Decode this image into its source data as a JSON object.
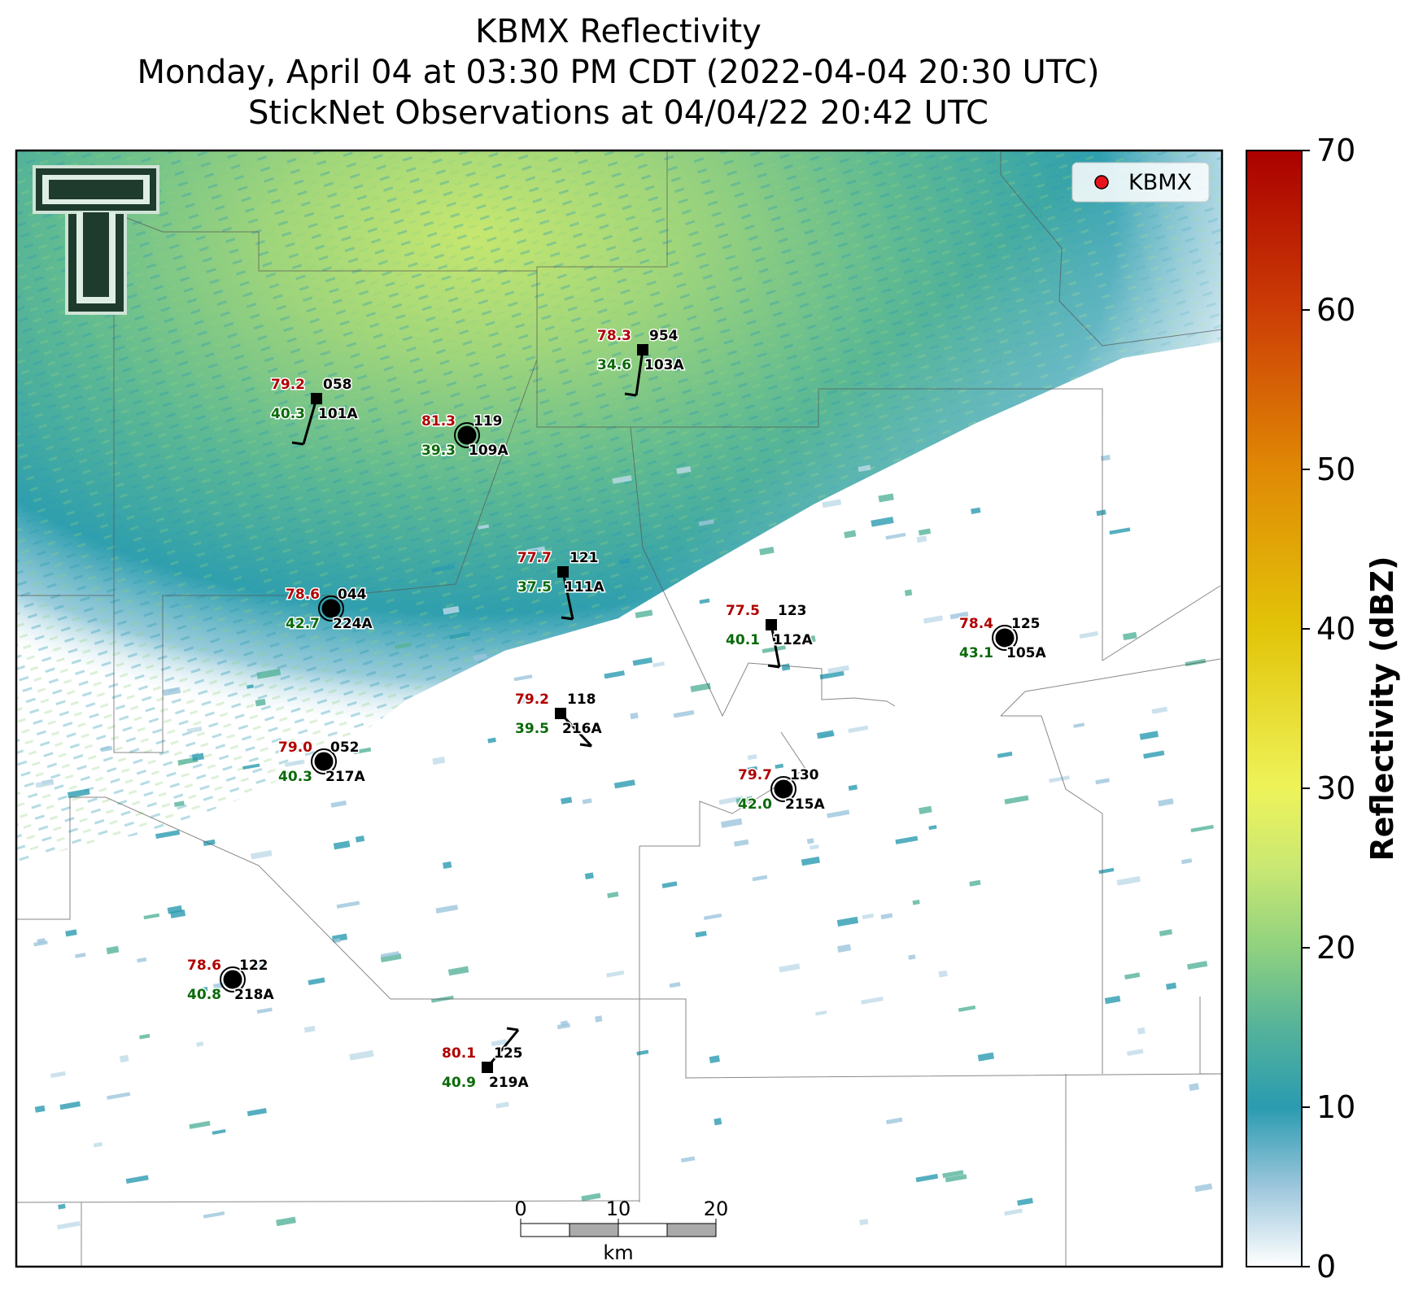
{
  "title": {
    "line1": "KBMX Reflectivity",
    "line2": "Monday, April 04 at 03:30 PM CDT (2022-04-04 20:30 UTC)",
    "line3": "StickNet Observations at 04/04/22 20:42 UTC"
  },
  "legend": {
    "label": "KBMX",
    "marker_color": "#e8141b"
  },
  "colorbar": {
    "label": "Reflectivity (dBZ)",
    "ticks": [
      "0",
      "10",
      "20",
      "30",
      "40",
      "50",
      "60",
      "70"
    ],
    "stops": [
      {
        "value": 0,
        "color": "#ffffff"
      },
      {
        "value": 5,
        "color": "#9cc6dc"
      },
      {
        "value": 10,
        "color": "#2a9bb0"
      },
      {
        "value": 15,
        "color": "#55b39a"
      },
      {
        "value": 20,
        "color": "#8fd17f"
      },
      {
        "value": 25,
        "color": "#c9e873"
      },
      {
        "value": 30,
        "color": "#eef35a"
      },
      {
        "value": 40,
        "color": "#e2c409"
      },
      {
        "value": 50,
        "color": "#e08905"
      },
      {
        "value": 60,
        "color": "#cc3d06"
      },
      {
        "value": 70,
        "color": "#aa0000"
      }
    ]
  },
  "scale_bar": {
    "labels": [
      "0",
      "10",
      "20"
    ],
    "unit": "km"
  },
  "logo": {
    "icon": "texas-tech-double-t-logo"
  },
  "stations": [
    {
      "temp": "78.3",
      "dew": "34.6",
      "pres": "954",
      "id": "103A",
      "type": "square"
    },
    {
      "temp": "79.2",
      "dew": "40.3",
      "pres": "058",
      "id": "101A",
      "type": "square"
    },
    {
      "temp": "81.3",
      "dew": "39.3",
      "pres": "119",
      "id": "109A",
      "type": "circle"
    },
    {
      "temp": "77.7",
      "dew": "37.5",
      "pres": "121",
      "id": "111A",
      "type": "square"
    },
    {
      "temp": "78.6",
      "dew": "42.7",
      "pres": "044",
      "id": "224A",
      "type": "circle"
    },
    {
      "temp": "77.5",
      "dew": "40.1",
      "pres": "123",
      "id": "112A",
      "type": "square"
    },
    {
      "temp": "78.4",
      "dew": "43.1",
      "pres": "125",
      "id": "105A",
      "type": "circle"
    },
    {
      "temp": "79.2",
      "dew": "39.5",
      "pres": "118",
      "id": "216A",
      "type": "square"
    },
    {
      "temp": "79.0",
      "dew": "40.3",
      "pres": "052",
      "id": "217A",
      "type": "circle"
    },
    {
      "temp": "79.7",
      "dew": "42.0",
      "pres": "130",
      "id": "215A",
      "type": "circle"
    },
    {
      "temp": "78.6",
      "dew": "40.8",
      "pres": "122",
      "id": "218A",
      "type": "circle"
    },
    {
      "temp": "80.1",
      "dew": "40.9",
      "pres": "125",
      "id": "219A",
      "type": "square"
    }
  ]
}
